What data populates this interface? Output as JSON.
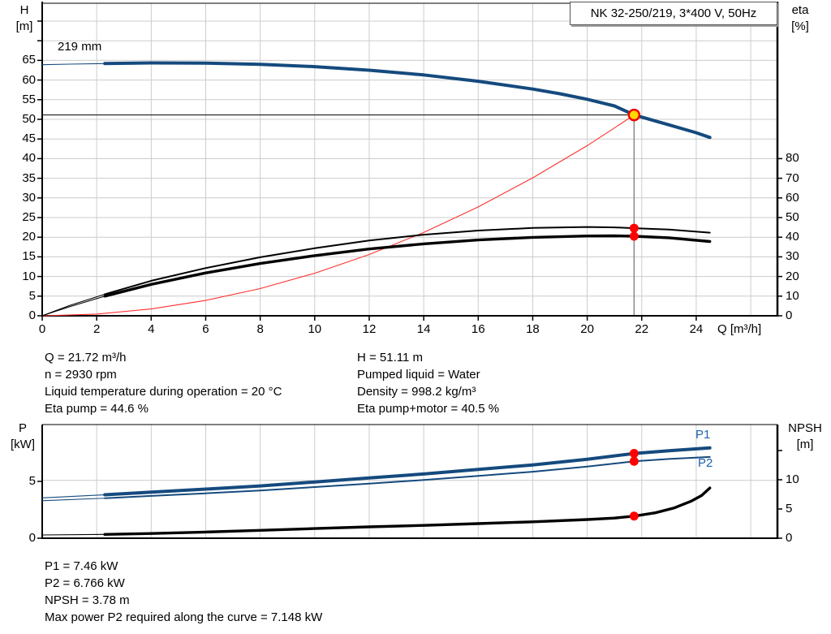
{
  "title_box": "NK 32-250/219, 3*400 V, 50Hz",
  "info_top_left": [
    "Q = 21.72 m³/h",
    "n = 2930 rpm",
    "Liquid temperature during operation = 20 °C",
    "Eta pump = 44.6 %"
  ],
  "info_top_right": [
    "H = 51.11 m",
    "Pumped liquid = Water",
    "Density = 998.2 kg/m³",
    "Eta pump+motor = 40.5 %"
  ],
  "info_bottom": [
    "P1 = 7.46 kW",
    "P2 = 6.766 kW",
    "NPSH = 3.78 m",
    "Max power P2 required along the curve = 7.148 kW"
  ],
  "colors": {
    "curve_blue": "#154a7e",
    "curve_black": "#000000",
    "system_red": "#ff3030",
    "marker_red": "#ff0000",
    "duty_fill_yellow": "#ffd800",
    "duty_ring_red": "#f00000",
    "grid_gray": "#cccccc",
    "duty_drop_gray": "#878787",
    "label_blue": "#1f62ad"
  },
  "chart_data": [
    {
      "id": "qh-eta-chart",
      "type": "line",
      "title": "NK 32-250/219, 3*400 V, 50Hz",
      "annotation": "219 mm",
      "xlabel": "Q [m³/h]",
      "ylabel_left": "H [m]",
      "ylabel_left_lines": [
        "H",
        "[m]"
      ],
      "ylabel_right": "eta [%]",
      "ylabel_right_lines": [
        "eta",
        "[%]"
      ],
      "xlim": [
        0,
        27
      ],
      "ylim_left": [
        0,
        79.5
      ],
      "ylim_right": [
        0,
        159
      ],
      "grid": true,
      "x_ticks": [
        0,
        2,
        4,
        6,
        8,
        10,
        12,
        14,
        16,
        18,
        20,
        22,
        24
      ],
      "y_ticks_left_labeled": [
        0,
        5,
        10,
        15,
        20,
        25,
        30,
        35,
        40,
        45,
        50,
        55,
        60,
        65
      ],
      "y_ticks_left_unlabeled": [
        70,
        75
      ],
      "y_ticks_right": [
        0,
        10,
        20,
        30,
        40,
        50,
        60,
        70,
        80
      ],
      "duty_point": {
        "Q": 21.72,
        "H": 51.11,
        "eta_pump": 44.6,
        "eta_pump_motor": 40.5
      },
      "series": [
        {
          "name": "system-curve",
          "axis": "left",
          "color": "#ff3030",
          "width": 1.1,
          "points": [
            [
              0,
              0
            ],
            [
              2,
              0.43
            ],
            [
              4,
              1.73
            ],
            [
              6,
              3.9
            ],
            [
              8,
              6.93
            ],
            [
              10,
              10.83
            ],
            [
              12,
              15.6
            ],
            [
              14,
              21.2
            ],
            [
              16,
              27.7
            ],
            [
              18,
              35.1
            ],
            [
              20,
              43.3
            ],
            [
              21,
              47.8
            ],
            [
              21.72,
              51.11
            ]
          ]
        },
        {
          "name": "eta-pump-curve",
          "axis": "right",
          "color": "#000000",
          "width": 2,
          "thin_until": 2.3,
          "points": [
            [
              0,
              0
            ],
            [
              0.5,
              2.6
            ],
            [
              1,
              5.2
            ],
            [
              2.3,
              11
            ],
            [
              4,
              17.8
            ],
            [
              6,
              24.3
            ],
            [
              8,
              29.8
            ],
            [
              10,
              34.4
            ],
            [
              12,
              38.3
            ],
            [
              14,
              41.3
            ],
            [
              16,
              43.4
            ],
            [
              18,
              44.7
            ],
            [
              20,
              45.2
            ],
            [
              21,
              45.0
            ],
            [
              21.72,
              44.6
            ],
            [
              23,
              43.9
            ],
            [
              24.5,
              42.3
            ]
          ]
        },
        {
          "name": "eta-pump-motor-curve",
          "axis": "right",
          "color": "#000000",
          "width": 3.4,
          "thin_until": 2.3,
          "points": [
            [
              0,
              0
            ],
            [
              0.5,
              2.3
            ],
            [
              1,
              4.6
            ],
            [
              2.3,
              10
            ],
            [
              4,
              16
            ],
            [
              6,
              21.8
            ],
            [
              8,
              26.6
            ],
            [
              10,
              30.6
            ],
            [
              12,
              34
            ],
            [
              14,
              36.6
            ],
            [
              16,
              38.6
            ],
            [
              18,
              39.9
            ],
            [
              20,
              40.6
            ],
            [
              21,
              40.7
            ],
            [
              21.72,
              40.5
            ],
            [
              23,
              39.7
            ],
            [
              24.5,
              37.8
            ]
          ]
        },
        {
          "name": "head-curve",
          "axis": "left",
          "color": "#154a7e",
          "width": 4,
          "thin_until": 2.3,
          "points": [
            [
              0,
              63.9
            ],
            [
              1,
              64.05
            ],
            [
              2.3,
              64.2
            ],
            [
              4,
              64.35
            ],
            [
              6,
              64.3
            ],
            [
              8,
              64.0
            ],
            [
              10,
              63.4
            ],
            [
              12,
              62.5
            ],
            [
              14,
              61.3
            ],
            [
              16,
              59.7
            ],
            [
              18,
              57.7
            ],
            [
              19,
              56.5
            ],
            [
              20,
              55.1
            ],
            [
              21,
              53.4
            ],
            [
              21.72,
              51.11
            ],
            [
              23,
              48.6
            ],
            [
              24,
              46.6
            ],
            [
              24.5,
              45.4
            ]
          ]
        }
      ]
    },
    {
      "id": "power-npsh-chart",
      "type": "line",
      "xlabel": "",
      "ylabel_left": "P [kW]",
      "ylabel_left_lines": [
        "P",
        "[kW]"
      ],
      "ylabel_right": "NPSH [m]",
      "ylabel_right_lines": [
        "NPSH",
        "[m]"
      ],
      "xlim": [
        0,
        27
      ],
      "ylim_left": [
        0,
        10
      ],
      "ylim_right": [
        0,
        19.4
      ],
      "grid": true,
      "x_ticks": [],
      "y_ticks_left_labeled": [
        0,
        5
      ],
      "y_ticks_right_all": [
        0,
        5,
        10,
        15
      ],
      "y_ticks_right_labeled": [
        0,
        5,
        10
      ],
      "duty_point": {
        "Q": 21.72,
        "P1": 7.46,
        "P2": 6.766,
        "NPSH": 3.78
      },
      "series": [
        {
          "name": "p1-curve",
          "label": "P1",
          "axis": "left",
          "color": "#154a7e",
          "width": 4,
          "thin_until": 2.3,
          "points": [
            [
              0,
              3.55
            ],
            [
              2.3,
              3.82
            ],
            [
              4,
              4.05
            ],
            [
              6,
              4.32
            ],
            [
              8,
              4.6
            ],
            [
              10,
              4.95
            ],
            [
              12,
              5.3
            ],
            [
              14,
              5.65
            ],
            [
              16,
              6.05
            ],
            [
              18,
              6.45
            ],
            [
              20,
              6.95
            ],
            [
              21.72,
              7.46
            ],
            [
              23,
              7.7
            ],
            [
              24.5,
              7.95
            ]
          ]
        },
        {
          "name": "p2-curve",
          "label": "P2",
          "axis": "left",
          "color": "#154a7e",
          "width": 2,
          "thin_until": 2.3,
          "points": [
            [
              0,
              3.3
            ],
            [
              2.3,
              3.52
            ],
            [
              4,
              3.72
            ],
            [
              6,
              3.95
            ],
            [
              8,
              4.2
            ],
            [
              10,
              4.5
            ],
            [
              12,
              4.8
            ],
            [
              14,
              5.12
            ],
            [
              16,
              5.48
            ],
            [
              18,
              5.85
            ],
            [
              20,
              6.3
            ],
            [
              21.72,
              6.766
            ],
            [
              23,
              6.97
            ],
            [
              24.5,
              7.148
            ]
          ]
        },
        {
          "name": "npsh-curve",
          "label": "",
          "axis": "right",
          "color": "#000000",
          "width": 3.4,
          "thin_until": 2.3,
          "points": [
            [
              0,
              0.55
            ],
            [
              2.3,
              0.65
            ],
            [
              4,
              0.8
            ],
            [
              6,
              1.05
            ],
            [
              8,
              1.35
            ],
            [
              10,
              1.65
            ],
            [
              12,
              1.95
            ],
            [
              14,
              2.2
            ],
            [
              16,
              2.5
            ],
            [
              18,
              2.8
            ],
            [
              20,
              3.2
            ],
            [
              21,
              3.45
            ],
            [
              21.72,
              3.78
            ],
            [
              22.5,
              4.35
            ],
            [
              23.2,
              5.2
            ],
            [
              23.8,
              6.3
            ],
            [
              24.2,
              7.3
            ],
            [
              24.5,
              8.6
            ]
          ]
        }
      ]
    }
  ]
}
